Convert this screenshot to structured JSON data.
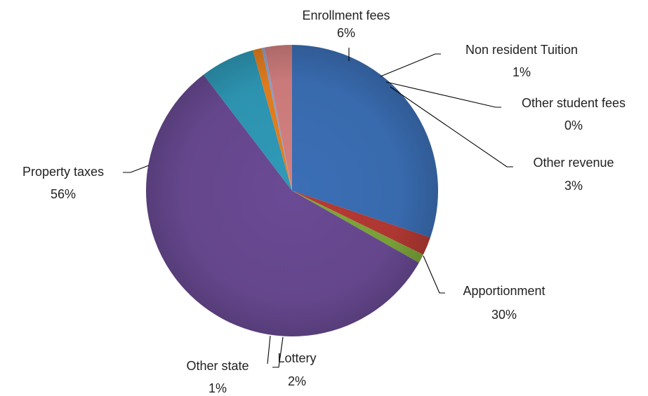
{
  "chart_data": {
    "type": "pie",
    "title": "",
    "start_angle_deg": -90,
    "direction": "clockwise",
    "slices": [
      {
        "name": "Apportionment",
        "value": 30,
        "label": "30%",
        "color": "#3B6FB6"
      },
      {
        "name": "Lottery",
        "value": 2,
        "label": "2%",
        "color": "#B73A34"
      },
      {
        "name": "Other state",
        "value": 1,
        "label": "1%",
        "color": "#7FA83A"
      },
      {
        "name": "Property taxes",
        "value": 56,
        "label": "56%",
        "color": "#6A4A94"
      },
      {
        "name": "Enrollment fees",
        "value": 6,
        "label": "6%",
        "color": "#2F9AB8"
      },
      {
        "name": "Non resident Tuition",
        "value": 1,
        "label": "1%",
        "color": "#E8811F"
      },
      {
        "name": "Other student fees",
        "value": 0,
        "label": "0%",
        "color": "#8FA5CF"
      },
      {
        "name": "Other revenue",
        "value": 3,
        "label": "3%",
        "color": "#D48080"
      }
    ]
  }
}
